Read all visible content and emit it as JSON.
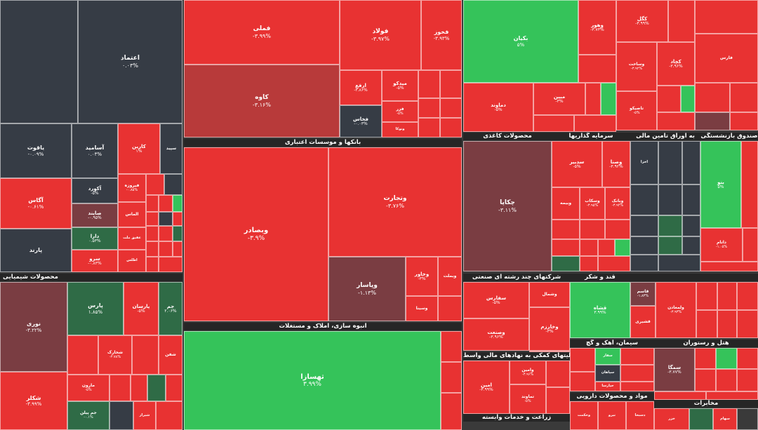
{
  "colors": {
    "red": "#e83232",
    "deep_red": "#b83a3a",
    "maroon": "#7a3d42",
    "dark_slate": "#363c45",
    "green": "#35c35a",
    "dark_green": "#2f6b46",
    "header": "#262626"
  },
  "sections": [
    {
      "label": "بانکها و موسسات اعتباری"
    },
    {
      "label": "انبوه سازی، املاک و مستغلات"
    },
    {
      "label": "محصولات شیمیایی"
    },
    {
      "label": "محصولات کاغذی"
    },
    {
      "label": "سرمایه گذاریها"
    },
    {
      "label": "به اوراق تامین مالی"
    },
    {
      "label": "صندوق بازنشستگی"
    },
    {
      "label": "شرکتهای چند رشته ای صنعتی"
    },
    {
      "label": "قند و شکر"
    },
    {
      "label": "فعالیتهای کمکی به نهادهای مالی واسط"
    },
    {
      "label": "سیمان، آهک و گچ"
    },
    {
      "label": "هتل و رستوران"
    },
    {
      "label": "مواد و محصولات دارویی"
    },
    {
      "label": "زراعت و خدمات وابسته"
    },
    {
      "label": "مخابرات"
    }
  ],
  "tiles": [
    {
      "symbol": "",
      "change": "",
      "color": "dark_slate"
    },
    {
      "symbol": "اعتماد",
      "change": "۰.۰۳%",
      "color": "dark_slate"
    },
    {
      "symbol": "یاقوت",
      "change": "-۰.۰۹%",
      "color": "dark_slate"
    },
    {
      "symbol": "آسامید",
      "change": "۰.۰۳%",
      "color": "dark_slate"
    },
    {
      "symbol": "کارین",
      "change": "۱%",
      "color": "red"
    },
    {
      "symbol": "سپید",
      "change": "",
      "color": "dark_slate"
    },
    {
      "symbol": "آگاس",
      "change": "-۰.۶۱%",
      "color": "red"
    },
    {
      "symbol": "آکورد",
      "change": "-۵%",
      "color": "dark_slate"
    },
    {
      "symbol": "صایند",
      "change": "-۰.۹۵%",
      "color": "maroon"
    },
    {
      "symbol": "دارا",
      "change": "۰.۵۳%",
      "color": "dark_green"
    },
    {
      "symbol": "پارند",
      "change": "",
      "color": "dark_slate"
    },
    {
      "symbol": "سرو",
      "change": "-۰.۸۳%",
      "color": "red"
    },
    {
      "symbol": "فیروزه",
      "change": "-۰.۸۵%",
      "color": "red"
    },
    {
      "symbol": "الماس",
      "change": "",
      "color": "red"
    },
    {
      "symbol": "عقیق ملت",
      "change": "",
      "color": "red"
    },
    {
      "symbol": "اطلس",
      "change": "",
      "color": "red"
    },
    {
      "symbol": "فملی",
      "change": "-۳.۹۹%",
      "color": "red"
    },
    {
      "symbol": "فولاد",
      "change": "-۳.۹۷%",
      "color": "red"
    },
    {
      "symbol": "فخوز",
      "change": "-۳.۹۳%",
      "color": "red"
    },
    {
      "symbol": "کاوه",
      "change": "-۳.۱۶%",
      "color": "deep_red"
    },
    {
      "symbol": "ارفع",
      "change": "-۳.۸۶%",
      "color": "red"
    },
    {
      "symbol": "میدکو",
      "change": "-۵%",
      "color": "red"
    },
    {
      "symbol": "فخاس",
      "change": "-۰.۰۳%",
      "color": "dark_slate"
    },
    {
      "symbol": "فزر",
      "change": "-۵%",
      "color": "red"
    },
    {
      "symbol": "ونوکا",
      "change": "",
      "color": "red"
    },
    {
      "symbol": "وبصادر",
      "change": "-۳.۹%",
      "color": "red"
    },
    {
      "symbol": "وتجارت",
      "change": "-۳.۷۶%",
      "color": "red"
    },
    {
      "symbol": "وپاسار",
      "change": "-۱.۱۳%",
      "color": "maroon"
    },
    {
      "symbol": "وخاور",
      "change": "-۳%",
      "color": "red"
    },
    {
      "symbol": "وبملت",
      "change": "",
      "color": "red"
    },
    {
      "symbol": "وسینا",
      "change": "",
      "color": "red"
    },
    {
      "symbol": "نوری",
      "change": "-۳.۲۲%",
      "color": "maroon"
    },
    {
      "symbol": "پارس",
      "change": "۱.۸۵%",
      "color": "dark_green"
    },
    {
      "symbol": "پارسان",
      "change": "-۵%",
      "color": "red"
    },
    {
      "symbol": "جم",
      "change": "۲.۰۶%",
      "color": "dark_green"
    },
    {
      "symbol": "شخارک",
      "change": "-۳.۷۸%",
      "color": "red"
    },
    {
      "symbol": "شفن",
      "change": "",
      "color": "red"
    },
    {
      "symbol": "مارون",
      "change": "-۵%",
      "color": "red"
    },
    {
      "symbol": "شکلر",
      "change": "-۳.۹۹%",
      "color": "red"
    },
    {
      "symbol": "جم پیلن",
      "change": "-۰.۱%",
      "color": "dark_green"
    },
    {
      "symbol": "شیراز",
      "change": "",
      "color": "red"
    },
    {
      "symbol": "ثهسازا",
      "change": "۳.۹۹%",
      "color": "green"
    },
    {
      "symbol": "بکیان",
      "change": "۵%",
      "color": "green"
    },
    {
      "symbol": "وهور",
      "change": "-۳.۷۳%",
      "color": "red"
    },
    {
      "symbol": "کگل",
      "change": "-۳.۹۹%",
      "color": "red"
    },
    {
      "symbol": "کچاد",
      "change": "-۳.۹۶%",
      "color": "red"
    },
    {
      "symbol": "وساخت",
      "change": "-۳.۹۲%",
      "color": "red"
    },
    {
      "symbol": "فارس",
      "change": "",
      "color": "red"
    },
    {
      "symbol": "دماوند",
      "change": "-۵%",
      "color": "red"
    },
    {
      "symbol": "مبین",
      "change": "-۳%",
      "color": "red"
    },
    {
      "symbol": "تاصیکو",
      "change": "-۵%",
      "color": "red"
    },
    {
      "symbol": "چکاپا",
      "change": "-۳.۱۱%",
      "color": "maroon"
    },
    {
      "symbol": "سدبیر",
      "change": "-۵%",
      "color": "red"
    },
    {
      "symbol": "وصنا",
      "change": "-۳.۹۲%",
      "color": "red"
    },
    {
      "symbol": "وبیمه",
      "change": "",
      "color": "red"
    },
    {
      "symbol": "وسکاب",
      "change": "-۳.۹۵%",
      "color": "red"
    },
    {
      "symbol": "وبانک",
      "change": "-۳.۹۴%",
      "color": "red"
    },
    {
      "symbol": "اخزا",
      "change": "",
      "color": "dark_slate"
    },
    {
      "symbol": "بنو",
      "change": "۵%",
      "color": "green"
    },
    {
      "symbol": "داتام",
      "change": "-۱.۰۵%",
      "color": "red"
    },
    {
      "symbol": "سفارس",
      "change": "-۵%",
      "color": "red"
    },
    {
      "symbol": "وشمال",
      "change": "",
      "color": "red"
    },
    {
      "symbol": "وخارزم",
      "change": "-۳%",
      "color": "red"
    },
    {
      "symbol": "وصنعت",
      "change": "-۳.۹۶%",
      "color": "red"
    },
    {
      "symbol": "وسپه",
      "change": "",
      "color": "red"
    },
    {
      "symbol": "قشاه",
      "change": "۳.۹۹%",
      "color": "green"
    },
    {
      "symbol": "قاسم",
      "change": "-۱.۸۳%",
      "color": "maroon"
    },
    {
      "symbol": "قشیری",
      "change": "",
      "color": "red"
    },
    {
      "symbol": "ولمعادن",
      "change": "-۳.۹۳%",
      "color": "red"
    },
    {
      "symbol": "وامین",
      "change": "-۳.۹۶%",
      "color": "red"
    },
    {
      "symbol": "امین",
      "change": "-۳.۹۹%",
      "color": "red"
    },
    {
      "symbol": "تماوند",
      "change": "-۵%",
      "color": "red"
    },
    {
      "symbol": "سمگا",
      "change": "-۳.۷۷%",
      "color": "maroon"
    },
    {
      "symbol": "ساوه",
      "change": "",
      "color": "red"
    },
    {
      "symbol": "سفار",
      "change": "",
      "color": "green"
    },
    {
      "symbol": "سپاهان",
      "change": "",
      "color": "dark_slate"
    },
    {
      "symbol": "حپارسا",
      "change": "",
      "color": "red"
    },
    {
      "symbol": "وحکمت",
      "change": "",
      "color": "red"
    },
    {
      "symbol": "نیرو",
      "change": "",
      "color": "red"
    },
    {
      "symbol": "دسبحا",
      "change": "",
      "color": "red"
    },
    {
      "symbol": "خزر",
      "change": "",
      "color": "red"
    },
    {
      "symbol": "سهام",
      "change": "",
      "color": "red"
    }
  ]
}
